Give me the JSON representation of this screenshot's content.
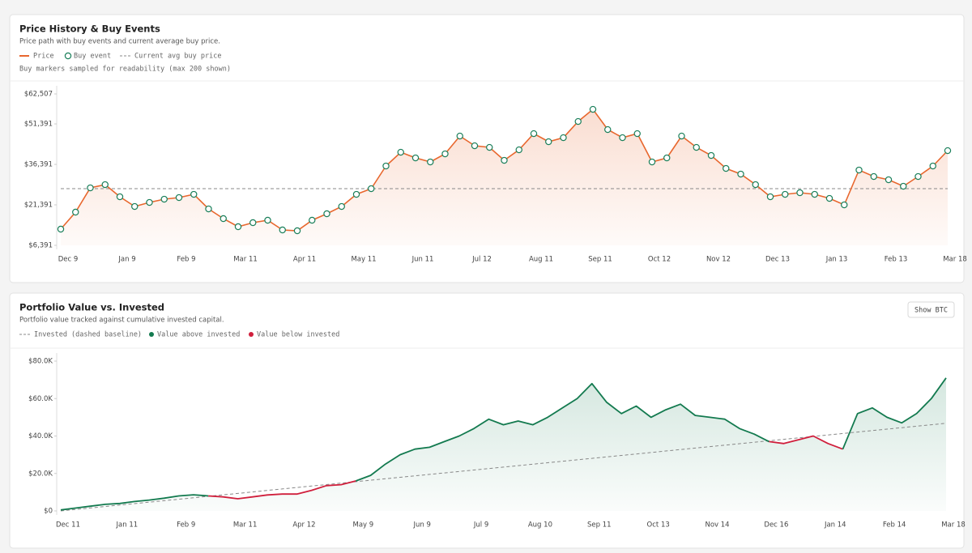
{
  "chart_data": [
    {
      "type": "line",
      "title": "Price History & Buy Events",
      "subtitle": "Price path with buy events and current average buy price.",
      "note": "Buy markers sampled for readability (max 200 shown)",
      "categories": [
        "Dec 9",
        null,
        null,
        null,
        "Jan 9",
        null,
        null,
        null,
        "Feb 9",
        null,
        null,
        null,
        "Mar 11",
        null,
        null,
        null,
        "Apr 11",
        null,
        null,
        null,
        "May 11",
        null,
        null,
        null,
        "Jun 11",
        null,
        null,
        null,
        "Jul 12",
        null,
        null,
        null,
        "Aug 11",
        null,
        null,
        null,
        "Sep 11",
        null,
        null,
        null,
        "Oct 12",
        null,
        null,
        null,
        "Nov 12",
        null,
        null,
        null,
        "Dec 13",
        null,
        null,
        null,
        "Jan 13",
        null,
        null,
        null,
        "Feb 13",
        null,
        null,
        null,
        "Mar 18"
      ],
      "series": [
        {
          "name": "Price",
          "color": "#e8672e",
          "values": [
            12391,
            18691,
            27691,
            28891,
            24391,
            20791,
            22291,
            23491,
            24091,
            25291,
            19891,
            16291,
            13291,
            14791,
            15691,
            12091,
            11791,
            15691,
            18091,
            20791,
            25291,
            27391,
            35791,
            40891,
            38791,
            37291,
            40291,
            46891,
            43291,
            42691,
            37891,
            41791,
            47791,
            44791,
            46291,
            52291,
            56791,
            49291,
            46291,
            47791,
            37291,
            38791,
            46891,
            42691,
            39691,
            34891,
            32791,
            28891,
            24391,
            25291,
            25891,
            25291,
            23791,
            21391,
            34291,
            31891,
            30691,
            28291,
            31891,
            35791,
            41491
          ]
        }
      ],
      "markers": {
        "name": "Buy event",
        "color": "#1a7f5a"
      },
      "reference_line": {
        "name": "Current avg buy price",
        "value": 27400,
        "color": "#888888"
      },
      "ylim": [
        6391,
        62507
      ],
      "yticks": [
        {
          "value": 6391,
          "label": "$6,391"
        },
        {
          "value": 21391,
          "label": "$21,391"
        },
        {
          "value": 36391,
          "label": "$36,391"
        },
        {
          "value": 51391,
          "label": "$51,391"
        },
        {
          "value": 62507,
          "label": "$62,507"
        }
      ],
      "grid": false
    },
    {
      "type": "line",
      "title": "Portfolio Value vs. Invested",
      "subtitle": "Portfolio value tracked against cumulative invested capital.",
      "button": "Show BTC",
      "categories": [
        "Dec 11",
        null,
        null,
        null,
        "Jan 11",
        null,
        null,
        null,
        "Feb 9",
        null,
        null,
        null,
        "Mar 11",
        null,
        null,
        null,
        "Apr 12",
        null,
        null,
        null,
        "May 9",
        null,
        null,
        null,
        "Jun 9",
        null,
        null,
        null,
        "Jul 9",
        null,
        null,
        null,
        "Aug 10",
        null,
        null,
        null,
        "Sep 11",
        null,
        null,
        null,
        "Oct 13",
        null,
        null,
        null,
        "Nov 14",
        null,
        null,
        null,
        "Dec 16",
        null,
        null,
        null,
        "Jan 14",
        null,
        null,
        null,
        "Feb 14",
        null,
        null,
        null,
        "Mar 18"
      ],
      "series": [
        {
          "name": "Invested (dashed baseline)",
          "color": "#888888",
          "values": [
            0,
            780,
            1560,
            2340,
            3120,
            3900,
            4680,
            5460,
            6240,
            7020,
            7800,
            8580,
            9360,
            10140,
            10920,
            11700,
            12480,
            13260,
            14040,
            14820,
            15600,
            16380,
            17160,
            17940,
            18720,
            19500,
            20280,
            21060,
            21840,
            22620,
            23400,
            24180,
            24960,
            25740,
            26520,
            27300,
            28080,
            28860,
            29640,
            30420,
            31200,
            31980,
            32760,
            33540,
            34320,
            35100,
            35880,
            36660,
            37440,
            38220,
            39000,
            39780,
            40560,
            41340,
            42120,
            42900,
            43680,
            44460,
            45240,
            46020,
            46800
          ]
        },
        {
          "values": [
            500,
            1500,
            2500,
            3500,
            4000,
            5000,
            5800,
            6800,
            8000,
            8600,
            8000,
            7500,
            6500,
            7500,
            8500,
            9000,
            9000,
            11000,
            13500,
            14000,
            16000,
            19000,
            25000,
            30000,
            33000,
            34000,
            37000,
            40000,
            44000,
            49000,
            46000,
            48000,
            46000,
            50000,
            55000,
            60000,
            68000,
            58000,
            52000,
            56000,
            50000,
            54000,
            57000,
            51000,
            50000,
            49000,
            44000,
            41000,
            37000,
            36000,
            38000,
            40000,
            36000,
            33000,
            52000,
            55000,
            50000,
            47000,
            52000,
            60000,
            71000
          ]
        }
      ],
      "value_legend": [
        {
          "name": "Value above invested",
          "color": "#137a4f"
        },
        {
          "name": "Value below invested",
          "color": "#d01f3c"
        }
      ],
      "ylim": [
        0,
        80000
      ],
      "yticks": [
        {
          "value": 0,
          "label": "$0"
        },
        {
          "value": 20000,
          "label": "$20.0K"
        },
        {
          "value": 40000,
          "label": "$40.0K"
        },
        {
          "value": 60000,
          "label": "$60.0K"
        },
        {
          "value": 80000,
          "label": "$80.0K"
        }
      ],
      "grid": false
    }
  ]
}
